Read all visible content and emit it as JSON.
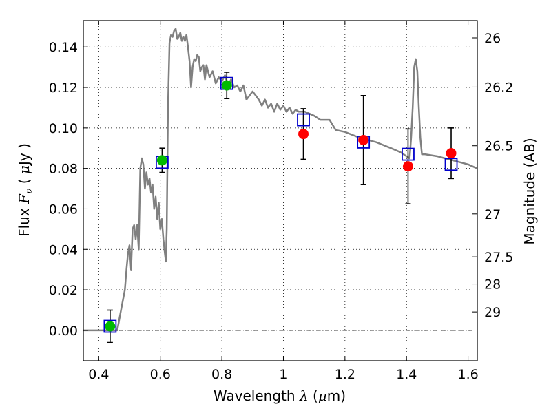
{
  "chart_data": {
    "type": "scatter",
    "xlabel": {
      "prefix": "Wavelength",
      "symbol": "λ",
      "unit_open": "(",
      "unit_mu": "μ",
      "unit_rest": "m)"
    },
    "ylabel": {
      "prefix": "Flux",
      "symbol": "F",
      "subscript": "ν",
      "unit_open": "(",
      "unit_mu": "μ",
      "unit_rest": "Jy )"
    },
    "y2label": "Magnitude (AB)",
    "xlim": [
      0.35,
      1.63
    ],
    "ylim": [
      -0.015,
      0.153
    ],
    "xticks": [
      0.4,
      0.6,
      0.8,
      1.0,
      1.2,
      1.4,
      1.6
    ],
    "xtick_labels": [
      "0.4",
      "0.6",
      "0.8",
      "1",
      "1.2",
      "1.4",
      "1.6"
    ],
    "yticks": [
      0.0,
      0.02,
      0.04,
      0.06,
      0.08,
      0.1,
      0.12,
      0.14
    ],
    "ytick_labels": [
      "0.00",
      "0.02",
      "0.04",
      "0.06",
      "0.08",
      "0.10",
      "0.12",
      "0.14"
    ],
    "right_ticks": [
      {
        "label": "26",
        "flux": 0.1445
      },
      {
        "label": "26.2",
        "flux": 0.1202
      },
      {
        "label": "26.5",
        "flux": 0.0912
      },
      {
        "label": "27",
        "flux": 0.0575
      },
      {
        "label": "27.5",
        "flux": 0.0363
      },
      {
        "label": "28",
        "flux": 0.0229
      },
      {
        "label": "29",
        "flux": 0.0091
      }
    ],
    "grid": true,
    "zero_line": true,
    "colors": {
      "sed": "#808080",
      "green_points": "#00bb00",
      "red_points": "#ff0000",
      "model_squares": "#0000cc",
      "errorbars": "#000000"
    },
    "sed_model": {
      "x": [
        0.35,
        0.46,
        0.47,
        0.485,
        0.49,
        0.495,
        0.5,
        0.505,
        0.51,
        0.515,
        0.52,
        0.525,
        0.53,
        0.535,
        0.54,
        0.545,
        0.55,
        0.555,
        0.56,
        0.565,
        0.57,
        0.575,
        0.58,
        0.585,
        0.59,
        0.595,
        0.6,
        0.605,
        0.61,
        0.615,
        0.618,
        0.621,
        0.625,
        0.63,
        0.635,
        0.64,
        0.645,
        0.65,
        0.655,
        0.66,
        0.665,
        0.67,
        0.675,
        0.68,
        0.685,
        0.69,
        0.695,
        0.7,
        0.705,
        0.71,
        0.715,
        0.72,
        0.725,
        0.73,
        0.735,
        0.74,
        0.745,
        0.75,
        0.76,
        0.77,
        0.78,
        0.79,
        0.8,
        0.81,
        0.82,
        0.83,
        0.84,
        0.85,
        0.86,
        0.87,
        0.88,
        0.89,
        0.9,
        0.91,
        0.92,
        0.93,
        0.94,
        0.95,
        0.96,
        0.97,
        0.98,
        0.99,
        1.0,
        1.01,
        1.02,
        1.03,
        1.04,
        1.05,
        1.07,
        1.1,
        1.12,
        1.15,
        1.17,
        1.2,
        1.25,
        1.3,
        1.35,
        1.38,
        1.4,
        1.41,
        1.415,
        1.42,
        1.425,
        1.43,
        1.435,
        1.44,
        1.445,
        1.45,
        1.455,
        1.46,
        1.5,
        1.55,
        1.6,
        1.63
      ],
      "y": [
        0.0,
        0.0,
        0.008,
        0.02,
        0.03,
        0.038,
        0.042,
        0.03,
        0.05,
        0.052,
        0.045,
        0.052,
        0.04,
        0.08,
        0.085,
        0.082,
        0.07,
        0.078,
        0.072,
        0.075,
        0.068,
        0.072,
        0.06,
        0.066,
        0.055,
        0.063,
        0.05,
        0.055,
        0.045,
        0.038,
        0.034,
        0.05,
        0.11,
        0.142,
        0.146,
        0.145,
        0.148,
        0.149,
        0.144,
        0.145,
        0.147,
        0.143,
        0.145,
        0.143,
        0.146,
        0.14,
        0.133,
        0.12,
        0.13,
        0.134,
        0.133,
        0.136,
        0.135,
        0.128,
        0.13,
        0.131,
        0.124,
        0.131,
        0.125,
        0.128,
        0.122,
        0.125,
        0.123,
        0.126,
        0.121,
        0.124,
        0.12,
        0.121,
        0.118,
        0.121,
        0.114,
        0.116,
        0.118,
        0.116,
        0.114,
        0.111,
        0.114,
        0.11,
        0.112,
        0.108,
        0.112,
        0.109,
        0.111,
        0.108,
        0.11,
        0.107,
        0.109,
        0.108,
        0.108,
        0.106,
        0.104,
        0.104,
        0.099,
        0.098,
        0.095,
        0.093,
        0.09,
        0.088,
        0.086,
        0.085,
        0.095,
        0.11,
        0.13,
        0.134,
        0.128,
        0.11,
        0.095,
        0.087,
        0.087,
        0.087,
        0.086,
        0.084,
        0.082,
        0.08
      ]
    },
    "series": [
      {
        "style": "green-circle",
        "x": [
          0.437,
          0.606,
          0.816
        ],
        "y": [
          0.002,
          0.084,
          0.121
        ],
        "yerr": [
          0.008,
          0.006,
          0.0065
        ]
      },
      {
        "style": "red-circle",
        "x": [
          1.065,
          1.26,
          1.405,
          1.545
        ],
        "y": [
          0.097,
          0.094,
          0.081,
          0.0875
        ],
        "yerr": [
          0.0125,
          0.022,
          0.0185,
          0.0125
        ]
      },
      {
        "style": "blue-square",
        "x": [
          0.437,
          0.606,
          0.816,
          1.065,
          1.26,
          1.405,
          1.545
        ],
        "y": [
          0.002,
          0.083,
          0.122,
          0.104,
          0.093,
          0.087,
          0.082
        ]
      }
    ]
  }
}
